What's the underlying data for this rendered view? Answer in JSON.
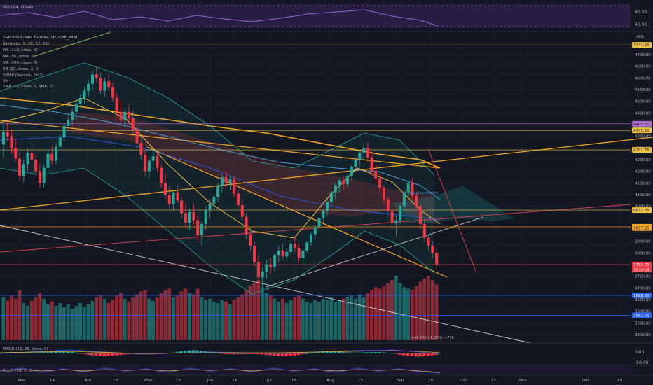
{
  "rsi_panel": {
    "title": "RSI (14, close)",
    "ticks": [
      "60.00",
      "40.00"
    ]
  },
  "main_panel": {
    "symbol": "S&P 500 E-mini Futures, 1D, CME_MINI",
    "currency": "USD",
    "indicators": [
      "Ichimoku (9, 26, 52, 26)",
      "MA (110, close, 0)",
      "MA (50, close, 0)",
      "MA (200, close, 0)",
      "BB (20, close, 2, 0)",
      "VWAP (Session, hlc3)",
      "Vol",
      "SMA (10, close, 0, SMA, 5)"
    ],
    "annotation_text": "1 day of resistance",
    "measure_text": "-444.00 (-11.26%) -1776"
  },
  "macd_panel": {
    "title": "MACD (12, 26, close, 9)",
    "ticks": [
      "0.00",
      "-50.00"
    ]
  },
  "stoch_panel": {
    "title": "Stoch (14, 1, 3)"
  },
  "x_axis_labels": [
    "Mar",
    "14",
    "Apr",
    "18",
    "May",
    "16",
    "Jun",
    "14",
    "Jul",
    "18",
    "Aug",
    "15",
    "Sep",
    "19",
    "Oct",
    "17",
    "Nov",
    "Dec",
    "19"
  ],
  "chart_data": {
    "type": "candlestick",
    "title": "S&P 500 E-mini Futures, 1D, CME_MINI",
    "y_unit": "USD",
    "y_ticks": [
      4700,
      4650,
      4600,
      4550,
      4500,
      4450,
      4350,
      4300,
      4250,
      4200,
      4150,
      4100,
      4050,
      3950,
      3900,
      3850,
      3800,
      3750,
      3700,
      3650,
      3600,
      3550,
      3500
    ],
    "ylim": [
      3470,
      4790
    ],
    "price_tags": [
      {
        "value": 4741.5,
        "label": "4741.50",
        "color": "#f0c040",
        "text_color": "#131722"
      },
      {
        "value": 4403.5,
        "label": "4403.50",
        "color": "#b06ad0",
        "text_color": "#131722"
      },
      {
        "value": 4375.5,
        "label": "4375.50",
        "color": "#f0c040",
        "text_color": "#131722"
      },
      {
        "value": 4291.75,
        "label": "4291.75",
        "color": "#f0c040",
        "text_color": "#131722"
      },
      {
        "value": 4033.75,
        "label": "4033.75",
        "color": "#f0c040",
        "text_color": "#131722"
      },
      {
        "value": 3962.25,
        "label": "3962.25",
        "color": "#f5a623",
        "text_color": "#131722"
      },
      {
        "value": 3957.25,
        "label": "3957.25",
        "color": "#f5a623",
        "text_color": "#131722"
      },
      {
        "value": 3799.75,
        "label": "3799.75",
        "color": "#f23645",
        "text_color": "#ffffff"
      },
      {
        "value": 3668.0,
        "label": "3668.00",
        "color": "#2962ff",
        "text_color": "#ffffff"
      },
      {
        "value": 3582.5,
        "label": "3582.50",
        "color": "#2962ff",
        "text_color": "#ffffff"
      }
    ],
    "countdown_label": "18:28:24",
    "last_close": 3799.75,
    "candles": [
      [
        4315,
        4400,
        4260,
        4370
      ],
      [
        4370,
        4415,
        4330,
        4350
      ],
      [
        4350,
        4380,
        4275,
        4300
      ],
      [
        4300,
        4340,
        4240,
        4255
      ],
      [
        4255,
        4280,
        4160,
        4180
      ],
      [
        4180,
        4250,
        4150,
        4230
      ],
      [
        4230,
        4300,
        4200,
        4280
      ],
      [
        4280,
        4330,
        4240,
        4250
      ],
      [
        4250,
        4270,
        4180,
        4200
      ],
      [
        4200,
        4230,
        4130,
        4150
      ],
      [
        4150,
        4230,
        4130,
        4215
      ],
      [
        4215,
        4290,
        4190,
        4275
      ],
      [
        4275,
        4310,
        4230,
        4245
      ],
      [
        4245,
        4320,
        4230,
        4305
      ],
      [
        4305,
        4360,
        4290,
        4345
      ],
      [
        4345,
        4410,
        4330,
        4395
      ],
      [
        4395,
        4440,
        4370,
        4420
      ],
      [
        4420,
        4470,
        4400,
        4455
      ],
      [
        4455,
        4500,
        4420,
        4490
      ],
      [
        4490,
        4530,
        4470,
        4515
      ],
      [
        4515,
        4560,
        4490,
        4545
      ],
      [
        4545,
        4590,
        4520,
        4575
      ],
      [
        4575,
        4630,
        4550,
        4615
      ],
      [
        4615,
        4650,
        4580,
        4600
      ],
      [
        4600,
        4620,
        4530,
        4545
      ],
      [
        4545,
        4600,
        4520,
        4585
      ],
      [
        4585,
        4620,
        4550,
        4560
      ],
      [
        4560,
        4580,
        4500,
        4515
      ],
      [
        4515,
        4530,
        4440,
        4455
      ],
      [
        4455,
        4500,
        4410,
        4420
      ],
      [
        4420,
        4470,
        4390,
        4455
      ],
      [
        4455,
        4490,
        4410,
        4430
      ],
      [
        4430,
        4460,
        4360,
        4380
      ],
      [
        4380,
        4410,
        4300,
        4320
      ],
      [
        4320,
        4350,
        4250,
        4270
      ],
      [
        4270,
        4290,
        4180,
        4200
      ],
      [
        4200,
        4260,
        4170,
        4245
      ],
      [
        4245,
        4290,
        4210,
        4265
      ],
      [
        4265,
        4280,
        4200,
        4215
      ],
      [
        4215,
        4230,
        4130,
        4150
      ],
      [
        4150,
        4190,
        4080,
        4100
      ],
      [
        4100,
        4140,
        4040,
        4060
      ],
      [
        4060,
        4120,
        4030,
        4110
      ],
      [
        4110,
        4140,
        4060,
        4075
      ],
      [
        4075,
        4090,
        4000,
        4020
      ],
      [
        4020,
        4060,
        3960,
        3980
      ],
      [
        3980,
        4040,
        3950,
        4025
      ],
      [
        4025,
        4060,
        3970,
        3990
      ],
      [
        3990,
        4010,
        3900,
        3925
      ],
      [
        3925,
        3990,
        3880,
        3975
      ],
      [
        3975,
        4050,
        3950,
        4035
      ],
      [
        4035,
        4080,
        4000,
        4060
      ],
      [
        4060,
        4100,
        4030,
        4090
      ],
      [
        4090,
        4150,
        4070,
        4140
      ],
      [
        4140,
        4190,
        4110,
        4175
      ],
      [
        4175,
        4200,
        4130,
        4150
      ],
      [
        4150,
        4180,
        4120,
        4165
      ],
      [
        4165,
        4180,
        4090,
        4105
      ],
      [
        4105,
        4120,
        4040,
        4055
      ],
      [
        4055,
        4080,
        3990,
        4005
      ],
      [
        4005,
        4020,
        3910,
        3930
      ],
      [
        3930,
        3960,
        3860,
        3880
      ],
      [
        3880,
        3900,
        3790,
        3810
      ],
      [
        3810,
        3840,
        3720,
        3745
      ],
      [
        3745,
        3790,
        3700,
        3770
      ],
      [
        3770,
        3820,
        3740,
        3800
      ],
      [
        3800,
        3830,
        3760,
        3790
      ],
      [
        3790,
        3850,
        3770,
        3840
      ],
      [
        3840,
        3880,
        3810,
        3860
      ],
      [
        3860,
        3890,
        3820,
        3835
      ],
      [
        3835,
        3870,
        3810,
        3855
      ],
      [
        3855,
        3900,
        3840,
        3890
      ],
      [
        3890,
        3920,
        3850,
        3870
      ],
      [
        3870,
        3890,
        3810,
        3830
      ],
      [
        3830,
        3870,
        3800,
        3860
      ],
      [
        3860,
        3900,
        3850,
        3895
      ],
      [
        3895,
        3940,
        3880,
        3930
      ],
      [
        3930,
        3970,
        3910,
        3960
      ],
      [
        3960,
        4010,
        3950,
        4000
      ],
      [
        4000,
        4040,
        3980,
        4030
      ],
      [
        4030,
        4080,
        4010,
        4070
      ],
      [
        4070,
        4120,
        4050,
        4110
      ],
      [
        4110,
        4150,
        4080,
        4140
      ],
      [
        4140,
        4170,
        4110,
        4160
      ],
      [
        4160,
        4180,
        4120,
        4145
      ],
      [
        4145,
        4190,
        4130,
        4180
      ],
      [
        4180,
        4230,
        4160,
        4220
      ],
      [
        4220,
        4260,
        4200,
        4250
      ],
      [
        4250,
        4290,
        4220,
        4280
      ],
      [
        4280,
        4320,
        4250,
        4300
      ],
      [
        4300,
        4325,
        4240,
        4260
      ],
      [
        4260,
        4280,
        4180,
        4200
      ],
      [
        4200,
        4230,
        4150,
        4170
      ],
      [
        4170,
        4190,
        4110,
        4130
      ],
      [
        4130,
        4140,
        4060,
        4080
      ],
      [
        4080,
        4090,
        4010,
        4030
      ],
      [
        4030,
        4050,
        3960,
        3980
      ],
      [
        3980,
        4010,
        3920,
        3990
      ],
      [
        3990,
        4060,
        3970,
        4050
      ],
      [
        4050,
        4120,
        4030,
        4110
      ],
      [
        4110,
        4160,
        4090,
        4150
      ],
      [
        4150,
        4170,
        4080,
        4095
      ],
      [
        4095,
        4110,
        4030,
        4050
      ],
      [
        4050,
        4060,
        3960,
        3975
      ],
      [
        3975,
        3990,
        3900,
        3915
      ],
      [
        3915,
        3930,
        3860,
        3880
      ],
      [
        3880,
        3900,
        3830,
        3850
      ],
      [
        3850,
        3870,
        3780,
        3800
      ]
    ],
    "volume": [
      60,
      55,
      62,
      58,
      70,
      52,
      48,
      55,
      60,
      66,
      58,
      50,
      54,
      48,
      52,
      46,
      50,
      44,
      48,
      52,
      46,
      50,
      55,
      60,
      62,
      58,
      52,
      56,
      62,
      66,
      58,
      54,
      60,
      64,
      68,
      70,
      58,
      55,
      60,
      66,
      70,
      72,
      60,
      62,
      68,
      72,
      66,
      64,
      72,
      60,
      56,
      58,
      54,
      52,
      56,
      54,
      50,
      56,
      60,
      64,
      70,
      76,
      80,
      84,
      74,
      66,
      62,
      58,
      54,
      58,
      52,
      56,
      60,
      62,
      58,
      54,
      52,
      56,
      54,
      58,
      56,
      60,
      54,
      56,
      58,
      60,
      62,
      58,
      64,
      60,
      66,
      70,
      74,
      72,
      76,
      80,
      84,
      90,
      80,
      74,
      72,
      70,
      76,
      82,
      86,
      90,
      84,
      78
    ]
  }
}
